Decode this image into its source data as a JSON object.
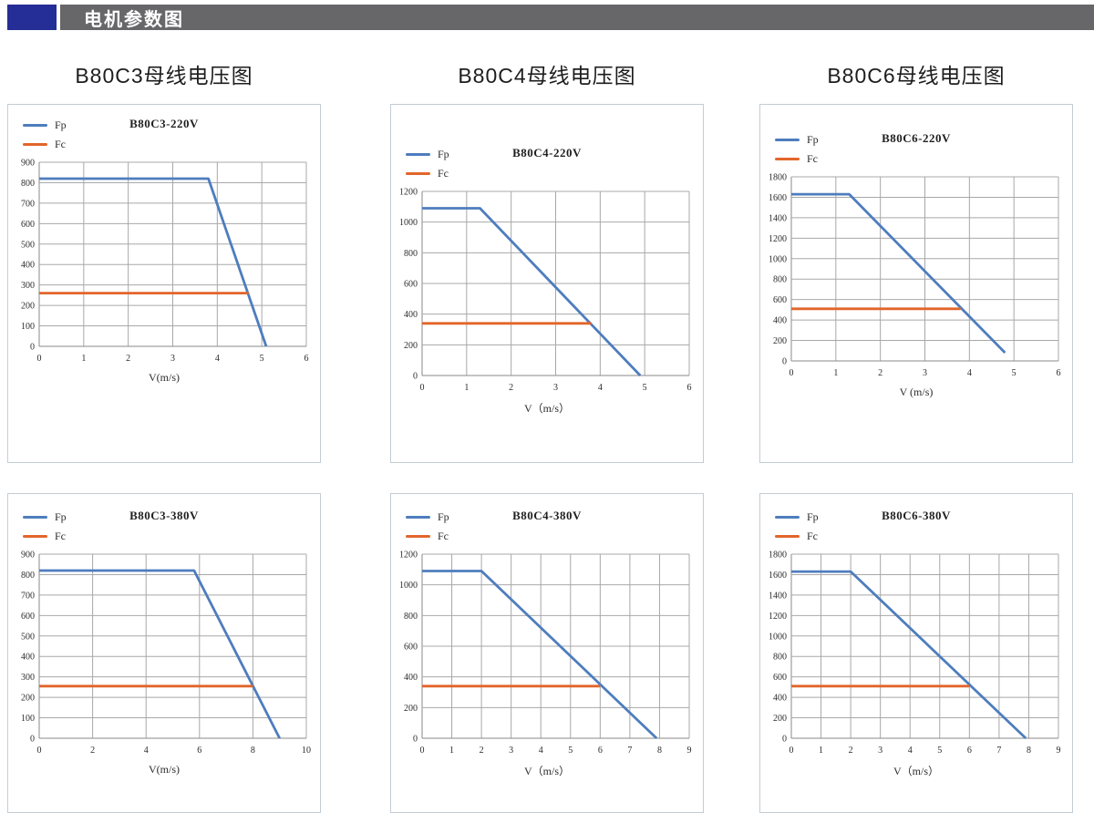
{
  "header": {
    "title": "电机参数图",
    "accent_color": "#252d96",
    "bar_color": "#67676a"
  },
  "colors": {
    "fp": "#4e7dbe",
    "fc": "#e2652a"
  },
  "chart_data": [
    {
      "type": "line",
      "panel_title": "B80C3母线电压图",
      "inner_title": "B80C3-220V",
      "xlabel": "V(m/s)",
      "ylabel": "",
      "xlim": [
        0,
        6
      ],
      "ylim": [
        0,
        900
      ],
      "x_ticks": [
        0,
        1,
        2,
        3,
        4,
        5,
        6
      ],
      "y_ticks": [
        0,
        100,
        200,
        300,
        400,
        500,
        600,
        700,
        800,
        900
      ],
      "grid": true,
      "legend_position": "top-left",
      "series": [
        {
          "name": "Fp",
          "color": "#4e7dbe",
          "points": [
            [
              0,
              820
            ],
            [
              3.8,
              820
            ],
            [
              5.1,
              0
            ]
          ]
        },
        {
          "name": "Fc",
          "color": "#e2652a",
          "points": [
            [
              0,
              260
            ],
            [
              4.7,
              260
            ]
          ]
        }
      ]
    },
    {
      "type": "line",
      "panel_title": "B80C4母线电压图",
      "inner_title": "B80C4-220V",
      "xlabel": "V（m/s）",
      "ylabel": "",
      "xlim": [
        0,
        6
      ],
      "ylim": [
        0,
        1200
      ],
      "x_ticks": [
        0,
        1,
        2,
        3,
        4,
        5,
        6
      ],
      "y_ticks": [
        0,
        200,
        400,
        600,
        800,
        1000,
        1200
      ],
      "grid": true,
      "legend_position": "top-left",
      "series": [
        {
          "name": "Fp",
          "color": "#4e7dbe",
          "points": [
            [
              0,
              1090
            ],
            [
              1.3,
              1090
            ],
            [
              4.9,
              0
            ]
          ]
        },
        {
          "name": "Fc",
          "color": "#e2652a",
          "points": [
            [
              0,
              340
            ],
            [
              3.8,
              340
            ]
          ]
        }
      ]
    },
    {
      "type": "line",
      "panel_title": "B80C6母线电压图",
      "inner_title": "B80C6-220V",
      "xlabel": "V (m/s)",
      "ylabel": "",
      "xlim": [
        0,
        6
      ],
      "ylim": [
        0,
        1800
      ],
      "x_ticks": [
        0,
        1,
        2,
        3,
        4,
        5,
        6
      ],
      "y_ticks": [
        0,
        200,
        400,
        600,
        800,
        1000,
        1200,
        1400,
        1600,
        1800
      ],
      "grid": true,
      "legend_position": "top-left",
      "series": [
        {
          "name": "Fp",
          "color": "#4e7dbe",
          "points": [
            [
              0,
              1630
            ],
            [
              1.3,
              1630
            ],
            [
              4.8,
              80
            ]
          ]
        },
        {
          "name": "Fc",
          "color": "#e2652a",
          "points": [
            [
              0,
              510
            ],
            [
              3.8,
              510
            ]
          ]
        }
      ]
    },
    {
      "type": "line",
      "panel_title": "",
      "inner_title": "B80C3-380V",
      "xlabel": "V(m/s)",
      "ylabel": "",
      "xlim": [
        0,
        10
      ],
      "ylim": [
        0,
        900
      ],
      "x_ticks": [
        0,
        2,
        4,
        6,
        8,
        10
      ],
      "y_ticks": [
        0,
        100,
        200,
        300,
        400,
        500,
        600,
        700,
        800,
        900
      ],
      "grid": true,
      "legend_position": "top-left",
      "series": [
        {
          "name": "Fp",
          "color": "#4e7dbe",
          "points": [
            [
              0,
              820
            ],
            [
              5.8,
              820
            ],
            [
              9,
              0
            ]
          ]
        },
        {
          "name": "Fc",
          "color": "#e2652a",
          "points": [
            [
              0,
              255
            ],
            [
              8,
              255
            ]
          ]
        }
      ]
    },
    {
      "type": "line",
      "panel_title": "",
      "inner_title": "B80C4-380V",
      "xlabel": "V（m/s）",
      "ylabel": "",
      "xlim": [
        0,
        9
      ],
      "ylim": [
        0,
        1200
      ],
      "x_ticks": [
        0,
        1,
        2,
        3,
        4,
        5,
        6,
        7,
        8,
        9
      ],
      "y_ticks": [
        0,
        200,
        400,
        600,
        800,
        1000,
        1200
      ],
      "grid": true,
      "legend_position": "top-left",
      "series": [
        {
          "name": "Fp",
          "color": "#4e7dbe",
          "points": [
            [
              0,
              1090
            ],
            [
              2,
              1090
            ],
            [
              7.9,
              0
            ]
          ]
        },
        {
          "name": "Fc",
          "color": "#e2652a",
          "points": [
            [
              0,
              340
            ],
            [
              6,
              340
            ]
          ]
        }
      ]
    },
    {
      "type": "line",
      "panel_title": "",
      "inner_title": "B80C6-380V",
      "xlabel": "V（m/s）",
      "ylabel": "",
      "xlim": [
        0,
        9
      ],
      "ylim": [
        0,
        1800
      ],
      "x_ticks": [
        0,
        1,
        2,
        3,
        4,
        5,
        6,
        7,
        8,
        9
      ],
      "y_ticks": [
        0,
        200,
        400,
        600,
        800,
        1000,
        1200,
        1400,
        1600,
        1800
      ],
      "grid": true,
      "legend_position": "top-left",
      "series": [
        {
          "name": "Fp",
          "color": "#4e7dbe",
          "points": [
            [
              0,
              1630
            ],
            [
              2,
              1630
            ],
            [
              7.9,
              0
            ]
          ]
        },
        {
          "name": "Fc",
          "color": "#e2652a",
          "points": [
            [
              0,
              510
            ],
            [
              6,
              510
            ]
          ]
        }
      ]
    }
  ]
}
